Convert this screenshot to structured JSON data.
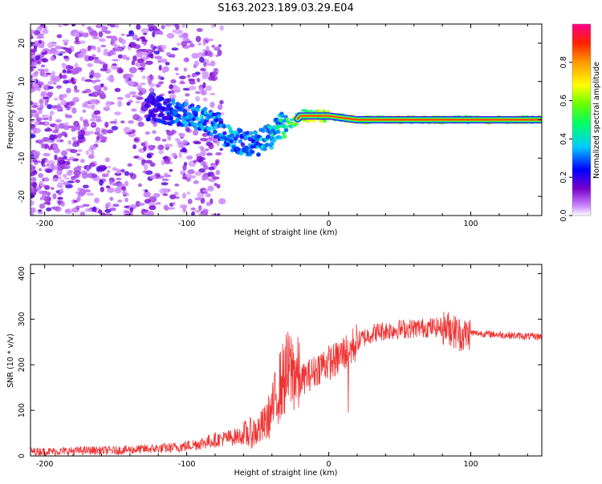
{
  "title": "S163.2023.189.03.29.E04",
  "chart_data": [
    {
      "type": "heatmap",
      "xlabel": "Height of straight line (km)",
      "ylabel": "Frequency (Hz)",
      "xlim": [
        -210,
        150
      ],
      "ylim": [
        -25,
        25
      ],
      "xticks": [
        -200,
        -100,
        0,
        100
      ],
      "yticks": [
        -20,
        -10,
        0,
        10,
        20
      ],
      "colorbar": {
        "label": "Normalized spectral amplitude",
        "range": [
          0,
          1
        ],
        "ticks": [
          "0.0",
          "0.2",
          "0.4",
          "0.6",
          "0.8"
        ],
        "colormap": "hsv-like purple-blue-cyan-green-yellow-orange-red-pink"
      },
      "ridge": {
        "x": [
          -125,
          -110,
          -100,
          -90,
          -80,
          -70,
          -60,
          -50,
          -40,
          -35,
          -30,
          -25,
          -20,
          -10,
          0,
          20,
          50,
          75,
          90,
          100,
          150
        ],
        "freq": [
          3,
          2,
          1,
          0,
          -1,
          -5,
          -6,
          -6,
          -4,
          -2,
          -1,
          -1,
          1,
          1,
          1,
          0,
          0,
          0,
          0,
          0,
          0
        ],
        "amplitude": [
          0.3,
          0.4,
          0.45,
          0.5,
          0.45,
          0.5,
          0.45,
          0.5,
          0.55,
          0.6,
          0.65,
          0.75,
          0.85,
          0.9,
          0.9,
          0.95,
          1.0,
          1.0,
          0.95,
          1.0,
          1.0
        ]
      }
    },
    {
      "type": "line",
      "xlabel": "Height of straight line (km)",
      "ylabel": "SNR (10 * v/v)",
      "xlim": [
        -210,
        150
      ],
      "ylim": [
        0,
        420
      ],
      "xticks": [
        -200,
        -100,
        0,
        100
      ],
      "yticks": [
        0,
        100,
        200,
        300,
        400
      ],
      "series": [
        {
          "color": "#ee3333",
          "x": [
            -210,
            -190,
            -170,
            -150,
            -130,
            -110,
            -100,
            -90,
            -80,
            -70,
            -60,
            -50,
            -45,
            -40,
            -35,
            -30,
            -25,
            -20,
            -15,
            -10,
            -5,
            0,
            5,
            10,
            15,
            20,
            25,
            30,
            35,
            40,
            50,
            60,
            70,
            80,
            85,
            90,
            95,
            100,
            110,
            120,
            130,
            140,
            150
          ],
          "values": [
            10,
            10,
            12,
            12,
            15,
            18,
            22,
            28,
            35,
            40,
            45,
            55,
            70,
            100,
            150,
            180,
            190,
            165,
            175,
            185,
            200,
            205,
            210,
            225,
            235,
            250,
            260,
            268,
            272,
            275,
            278,
            280,
            282,
            282,
            280,
            270,
            265,
            270,
            268,
            266,
            264,
            262,
            262
          ]
        }
      ]
    }
  ]
}
